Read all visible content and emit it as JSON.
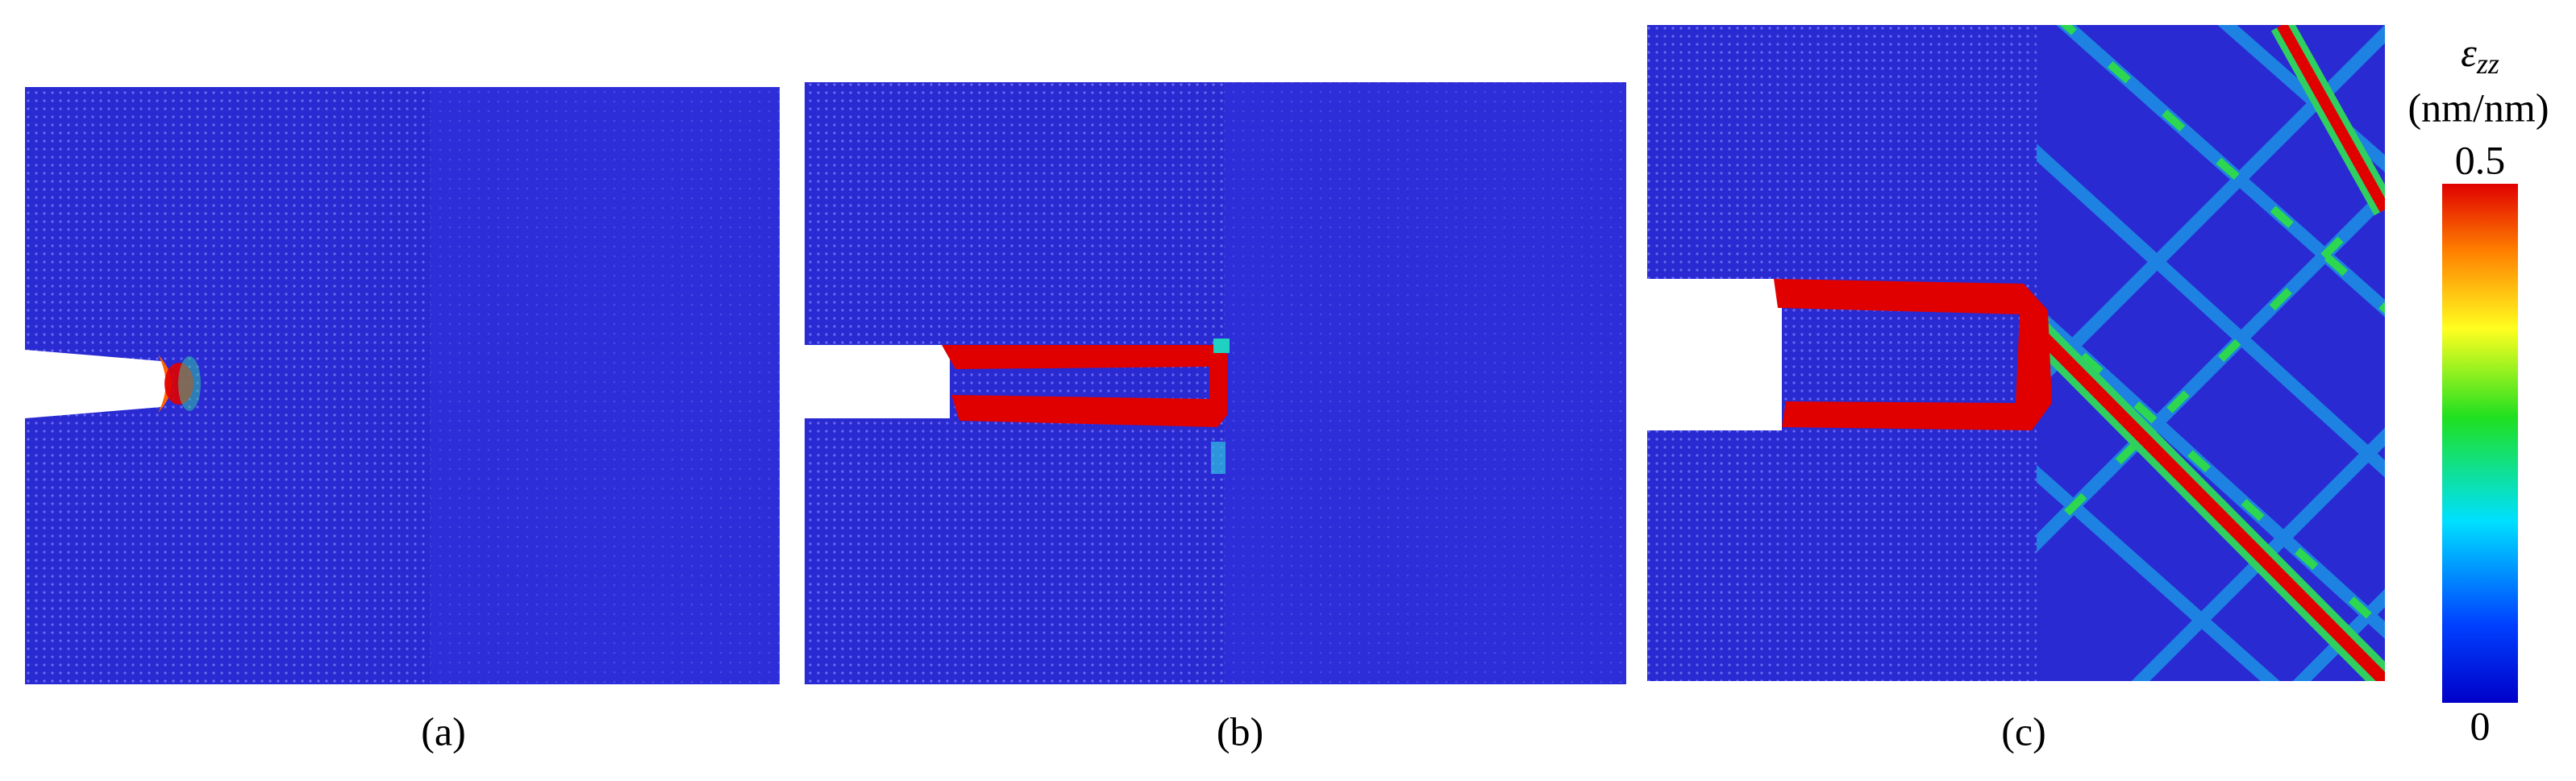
{
  "panels": [
    {
      "label": "(a)"
    },
    {
      "label": "(b)"
    },
    {
      "label": "(c)"
    }
  ],
  "colorbar": {
    "symbol": "ε",
    "subscript": "zz",
    "unit": "(nm/nm)",
    "max": "0.5",
    "min": "0"
  }
}
